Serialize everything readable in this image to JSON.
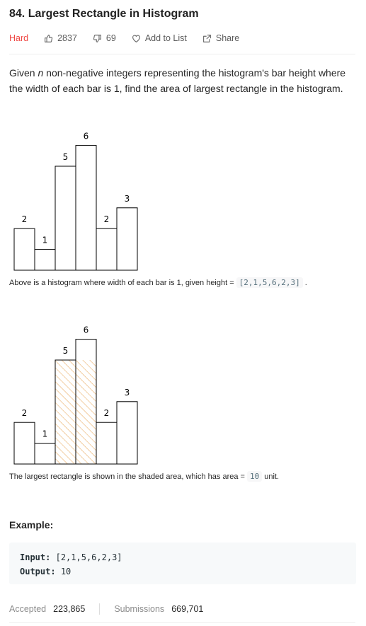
{
  "problem": {
    "title": "84. Largest Rectangle in Histogram",
    "difficulty": "Hard",
    "likes": "2837",
    "dislikes": "69",
    "add_to_list_label": "Add to List",
    "share_label": "Share",
    "description": {
      "part1": "Given ",
      "var": "n",
      "part2": " non-negative integers representing the histogram's bar height where the width of each bar is 1, find the area of largest rectangle in the histogram."
    }
  },
  "histogram1": {
    "caption_prefix": "Above is a histogram where width of each bar is 1, given height = ",
    "caption_code": "[2,1,5,6,2,3]",
    "caption_suffix": "."
  },
  "histogram2": {
    "caption_prefix": "The largest rectangle is shown in the shaded area, which has area = ",
    "caption_code": "10",
    "caption_suffix": "unit."
  },
  "chart_data": {
    "type": "bar",
    "values": [
      2,
      1,
      5,
      6,
      2,
      3
    ],
    "value_labels": [
      "2",
      "1",
      "5",
      "6",
      "2",
      "3"
    ],
    "highlight": {
      "start_index": 2,
      "end_index": 3,
      "height": 5,
      "area": 10
    },
    "colors": {
      "bar_stroke": "#000000",
      "hatch": "#e8a85c"
    }
  },
  "example": {
    "heading": "Example:",
    "input_label": "Input:",
    "input_value": "[2,1,5,6,2,3]",
    "output_label": "Output:",
    "output_value": "10"
  },
  "stats": {
    "accepted_label": "Accepted",
    "accepted_value": "223,865",
    "submissions_label": "Submissions",
    "submissions_value": "669,701"
  },
  "colors": {
    "difficulty_hard": "#ef4743"
  }
}
